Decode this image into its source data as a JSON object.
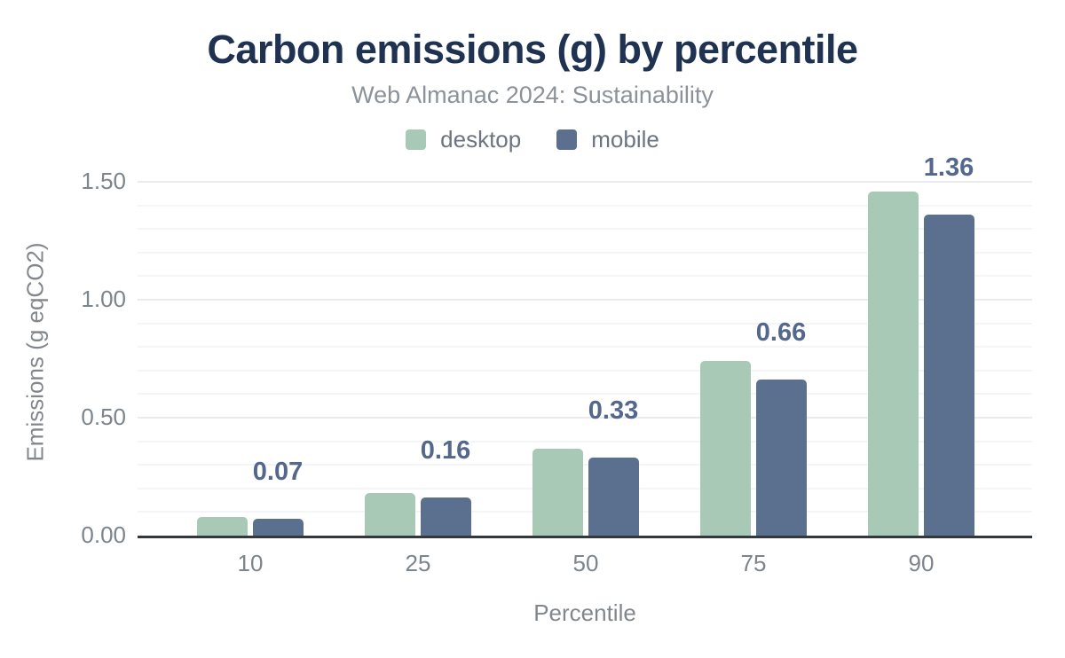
{
  "chart_data": {
    "type": "bar",
    "title": "Carbon emissions (g) by percentile",
    "subtitle": "Web Almanac 2024: Sustainability",
    "xlabel": "Percentile",
    "ylabel": "Emissions (g eqCO2)",
    "categories": [
      "10",
      "25",
      "50",
      "75",
      "90"
    ],
    "series": [
      {
        "name": "desktop",
        "color": "#a9c9b7",
        "values": [
          0.08,
          0.18,
          0.37,
          0.74,
          1.46
        ]
      },
      {
        "name": "mobile",
        "color": "#5b6f8e",
        "values": [
          0.07,
          0.16,
          0.33,
          0.66,
          1.36
        ]
      }
    ],
    "bar_labels": [
      "0.07",
      "0.16",
      "0.33",
      "0.66",
      "1.36"
    ],
    "bar_label_color": "#54678c",
    "y_ticks": [
      "0.00",
      "0.50",
      "1.00",
      "1.50"
    ],
    "ylim": [
      0,
      1.55
    ],
    "y_minor_step": 0.1,
    "y_major_step": 0.5,
    "grid": "horizontal",
    "legend_position": "top",
    "title_color": "#1f3251",
    "subtitle_color": "#8b9299",
    "axis_text_color": "#7c848d"
  }
}
